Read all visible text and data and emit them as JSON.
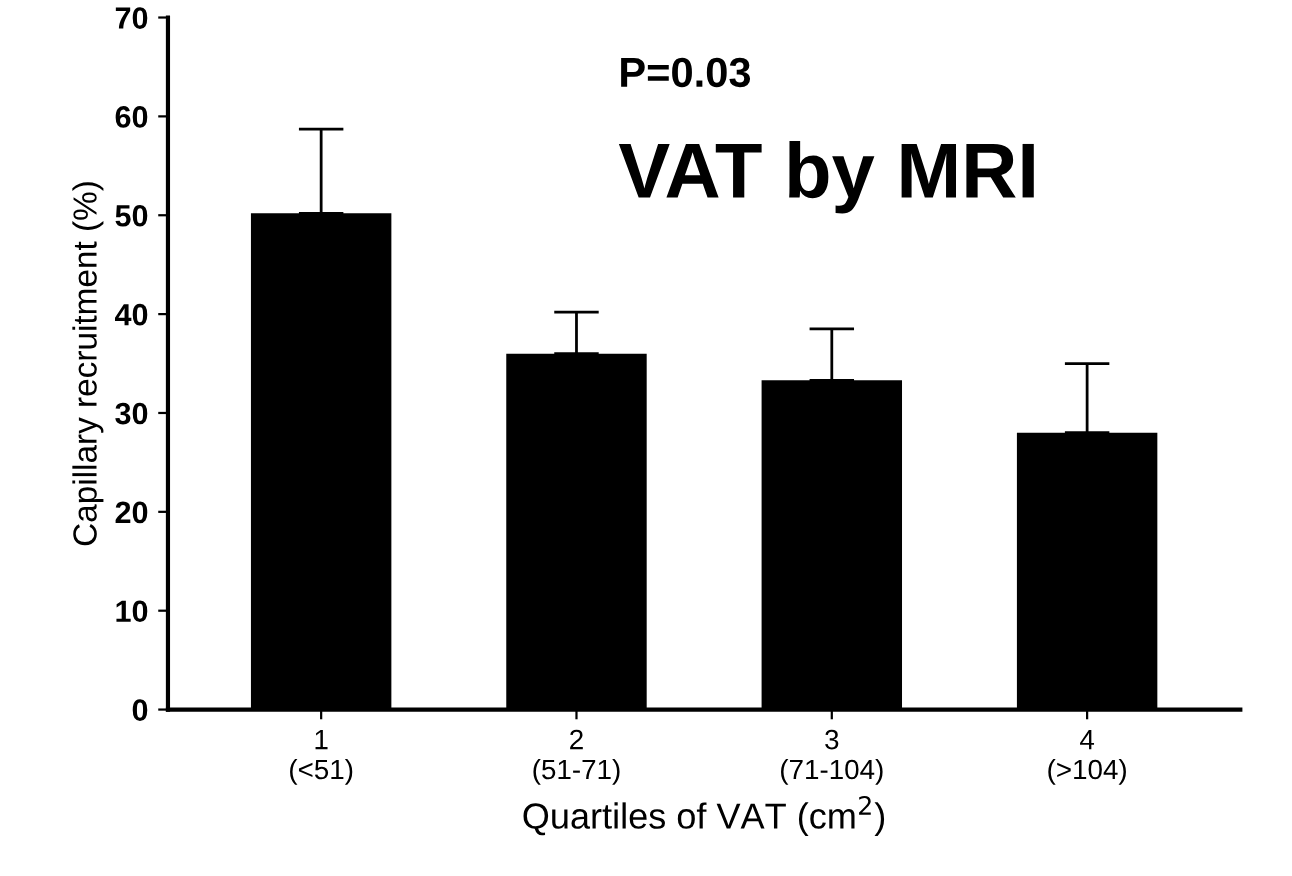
{
  "chart_data": {
    "type": "bar",
    "ylabel": "Capillary recruitment (%)",
    "xlabel": "Quartiles of VAT (cm$^{2}$)",
    "categories": [
      "1\n(<51)",
      "2\n(51-71)",
      "3\n(71-104)",
      "4\n(>104)"
    ],
    "values": [
      50.2,
      36,
      33.3,
      28
    ],
    "errors": [
      [
        50.2,
        58.7
      ],
      [
        36,
        40.2
      ],
      [
        33.3,
        38.5
      ],
      [
        28,
        35
      ]
    ],
    "color": "#000000",
    "ylim": [
      0,
      70
    ],
    "yticks": [
      0,
      10,
      20,
      30,
      40,
      50,
      60,
      70
    ],
    "grid": false,
    "legend": false,
    "annotations": [
      "P=0.03",
      "VAT by MRI"
    ]
  }
}
